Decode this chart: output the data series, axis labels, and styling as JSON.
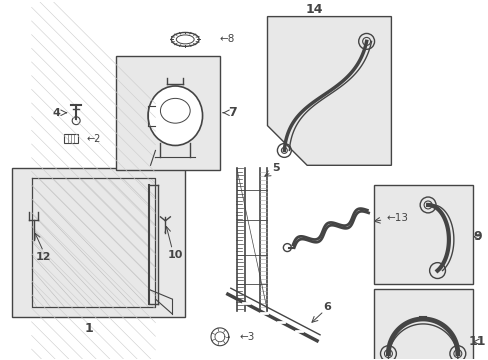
{
  "background_color": "#ffffff",
  "fig_width": 4.89,
  "fig_height": 3.6,
  "dpi": 100,
  "line_color": "#444444",
  "fill_color": "#e8e8e8",
  "label_color": "#111111"
}
